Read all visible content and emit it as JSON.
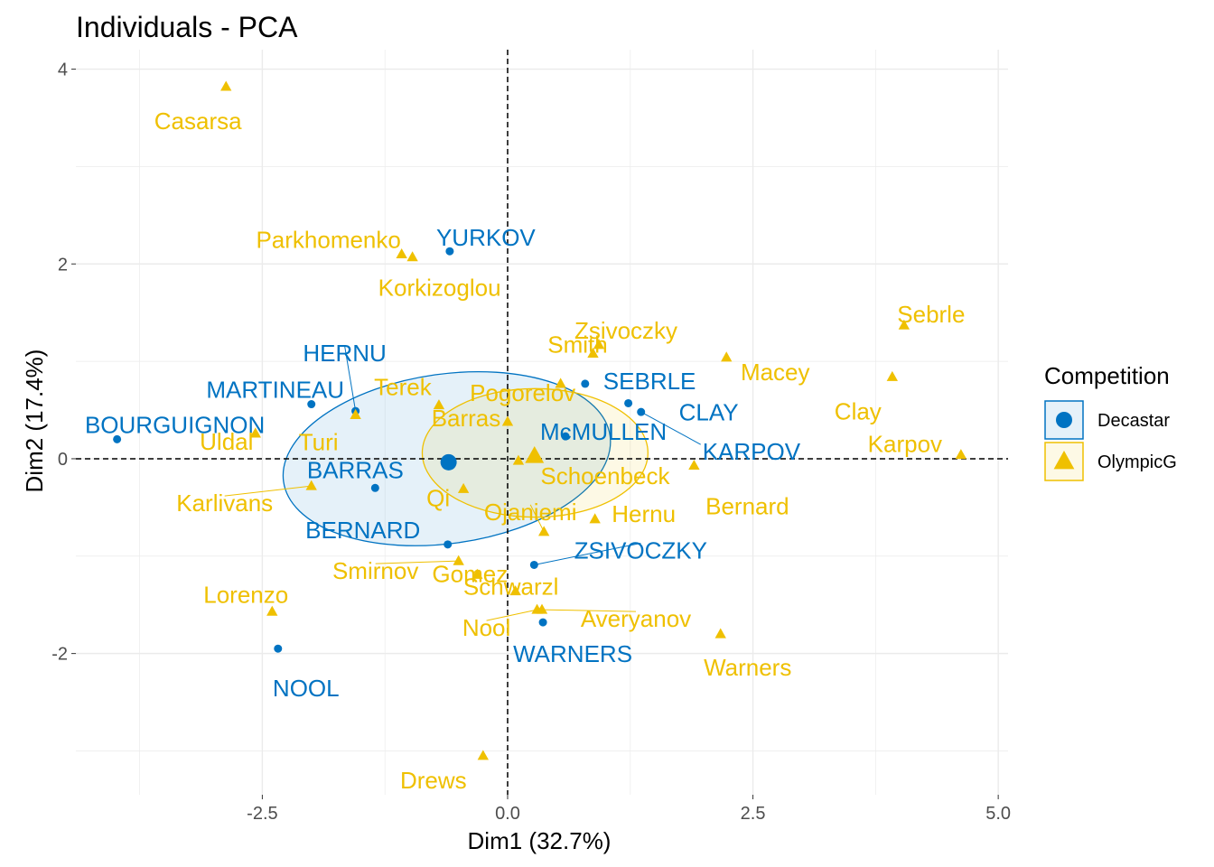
{
  "chart_data": {
    "type": "scatter",
    "title": "Individuals - PCA",
    "xlabel": "Dim1 (32.7%)",
    "ylabel": "Dim2 (17.4%)",
    "xlim": [
      -4.4,
      5.1
    ],
    "ylim": [
      -3.45,
      4.2
    ],
    "xticks": [
      -2.5,
      0,
      2.5,
      5
    ],
    "xtick_labels": [
      "-2.5",
      "0.0",
      "2.5",
      "5.0"
    ],
    "yticks": [
      -2,
      0,
      2,
      4
    ],
    "ytick_labels": [
      "-2",
      "0",
      "2",
      "4"
    ],
    "grid": true,
    "legend": {
      "title": "Competition",
      "position": "right",
      "entries": [
        {
          "name": "Decastar",
          "shape": "circle",
          "color": "#0073C2"
        },
        {
          "name": "OlympicG",
          "shape": "triangle",
          "color": "#EFC000"
        }
      ]
    },
    "series": [
      {
        "name": "Decastar",
        "color": "#0073C2",
        "marker": "circle",
        "ellipse": {
          "cx": -0.62,
          "cy": 0.0,
          "rx": 1.68,
          "ry": 0.87,
          "angle": 8
        },
        "points": [
          {
            "label": "SEBRLE",
            "x": 0.79,
            "y": 0.77
          },
          {
            "label": "CLAY",
            "x": 1.23,
            "y": 0.57
          },
          {
            "label": "KARPOV",
            "x": 1.36,
            "y": 0.48
          },
          {
            "label": "BERNARD",
            "x": -0.61,
            "y": -0.88
          },
          {
            "label": "YURKOV",
            "x": -0.59,
            "y": 2.13
          },
          {
            "label": "WARNERS",
            "x": 0.36,
            "y": -1.68
          },
          {
            "label": "ZSIVOCZKY",
            "x": 0.27,
            "y": -1.09
          },
          {
            "label": "McMULLEN",
            "x": 0.59,
            "y": 0.23
          },
          {
            "label": "MARTINEAU",
            "x": -2.0,
            "y": 0.56
          },
          {
            "label": "HERNU",
            "x": -1.55,
            "y": 0.49
          },
          {
            "label": "BARRAS",
            "x": -1.35,
            "y": -0.3
          },
          {
            "label": "NOOL",
            "x": -2.34,
            "y": -1.95
          },
          {
            "label": "BOURGUIGNON",
            "x": -3.98,
            "y": 0.2
          }
        ]
      },
      {
        "name": "OlympicG",
        "color": "#EFC000",
        "marker": "triangle",
        "ellipse": {
          "cx": 0.28,
          "cy": 0.06,
          "rx": 1.15,
          "ry": 0.66,
          "angle": 0
        },
        "points": [
          {
            "label": "Sebrle",
            "x": 4.04,
            "y": 1.37
          },
          {
            "label": "Clay",
            "x": 3.92,
            "y": 0.84
          },
          {
            "label": "Karpov",
            "x": 4.62,
            "y": 0.04
          },
          {
            "label": "Macey",
            "x": 2.23,
            "y": 1.04
          },
          {
            "label": "Warners",
            "x": 2.17,
            "y": -1.8
          },
          {
            "label": "Zsivoczky",
            "x": 0.93,
            "y": 1.17
          },
          {
            "label": "Hernu",
            "x": 0.89,
            "y": -0.62
          },
          {
            "label": "Nool",
            "x": 0.3,
            "y": -1.55
          },
          {
            "label": "Bernard",
            "x": 1.9,
            "y": -0.07
          },
          {
            "label": "Schwarzl",
            "x": 0.08,
            "y": -1.36
          },
          {
            "label": "Pogorelov",
            "x": 0.54,
            "y": 0.77
          },
          {
            "label": "Schoenbeck",
            "x": 0.11,
            "y": -0.02
          },
          {
            "label": "Barras",
            "x": 0.0,
            "y": 0.38
          },
          {
            "label": "Smith",
            "x": 0.87,
            "y": 1.08
          },
          {
            "label": "Averyanov",
            "x": 0.35,
            "y": -1.55
          },
          {
            "label": "Ojaniemi",
            "x": 0.37,
            "y": -0.75
          },
          {
            "label": "Smirnov",
            "x": -0.5,
            "y": -1.05
          },
          {
            "label": "Qi",
            "x": -0.45,
            "y": -0.31
          },
          {
            "label": "Drews",
            "x": -0.25,
            "y": -3.05
          },
          {
            "label": "Parkhomenko",
            "x": -1.08,
            "y": 2.1
          },
          {
            "label": "Terek",
            "x": -0.7,
            "y": 0.55
          },
          {
            "label": "Gomez",
            "x": -0.31,
            "y": -1.19
          },
          {
            "label": "Turi",
            "x": -1.55,
            "y": 0.45
          },
          {
            "label": "Lorenzo",
            "x": -2.4,
            "y": -1.57
          },
          {
            "label": "Karlivans",
            "x": -2.0,
            "y": -0.28
          },
          {
            "label": "Korkizoglou",
            "x": -0.97,
            "y": 2.07
          },
          {
            "label": "Uldal",
            "x": -2.57,
            "y": 0.26
          },
          {
            "label": "Casarsa",
            "x": -2.87,
            "y": 3.82
          }
        ]
      }
    ]
  }
}
